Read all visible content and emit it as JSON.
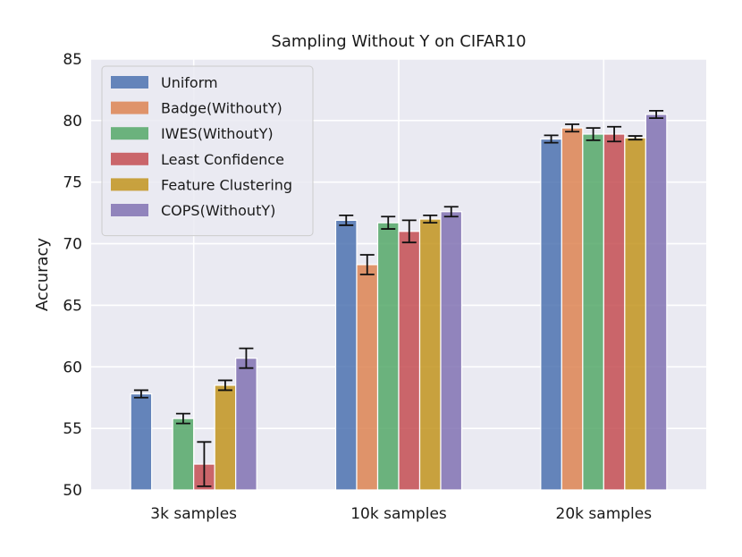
{
  "chart_data": {
    "type": "bar",
    "title": "Sampling Without Y on CIFAR10",
    "xlabel": "",
    "ylabel": "Accuracy",
    "ylim": [
      50,
      85
    ],
    "yticks": [
      50,
      55,
      60,
      65,
      70,
      75,
      80,
      85
    ],
    "grid": true,
    "legend_position": "top-left",
    "categories": [
      "3k samples",
      "10k samples",
      "20k samples"
    ],
    "series": [
      {
        "name": "Uniform",
        "color": "#4c72b0",
        "values": [
          57.8,
          71.9,
          78.5
        ],
        "errors": [
          0.3,
          0.4,
          0.3
        ]
      },
      {
        "name": "Badge(WithoutY)",
        "color": "#dd8452",
        "values": [
          null,
          68.3,
          79.4
        ],
        "errors": [
          null,
          0.8,
          0.3
        ]
      },
      {
        "name": "IWES(WithoutY)",
        "color": "#55a868",
        "values": [
          55.8,
          71.7,
          78.9
        ],
        "errors": [
          0.4,
          0.5,
          0.5
        ]
      },
      {
        "name": "Least Confidence",
        "color": "#c44e52",
        "values": [
          52.1,
          71.0,
          78.9
        ],
        "errors": [
          1.8,
          0.9,
          0.6
        ]
      },
      {
        "name": "Feature Clustering",
        "color": "#c2941f",
        "values": [
          58.5,
          72.0,
          78.6
        ],
        "errors": [
          0.4,
          0.3,
          0.15
        ]
      },
      {
        "name": "COPS(WithoutY)",
        "color": "#8172b3",
        "values": [
          60.7,
          72.6,
          80.5
        ],
        "errors": [
          0.8,
          0.4,
          0.3
        ]
      }
    ]
  }
}
